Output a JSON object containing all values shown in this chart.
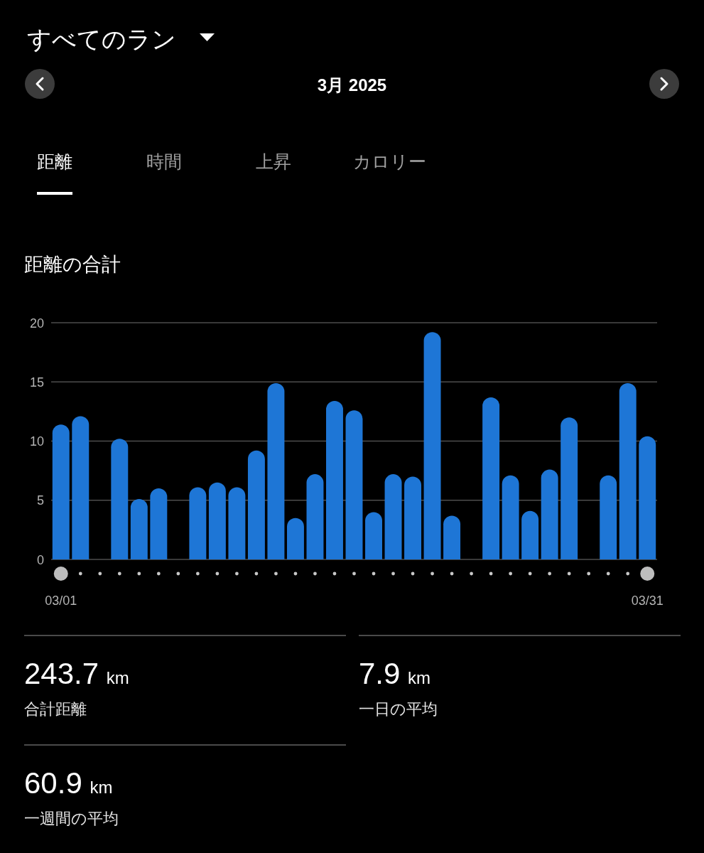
{
  "chart_data": [
    {
      "type": "other",
      "title": "すべてのラン",
      "subtitle": "3月 2025",
      "annotations": [
        "距離",
        "時間",
        "上昇",
        "カロリー"
      ]
    },
    {
      "type": "bar",
      "title": "距離の合計",
      "categories": [
        "03/01",
        null,
        null,
        null,
        null,
        null,
        null,
        null,
        null,
        null,
        null,
        null,
        null,
        null,
        null,
        null,
        null,
        null,
        null,
        null,
        null,
        null,
        null,
        null,
        null,
        null,
        null,
        null,
        null,
        null,
        "03/31"
      ],
      "values": [
        11.4,
        12.1,
        null,
        10.2,
        5.1,
        6.0,
        null,
        6.1,
        6.5,
        6.1,
        9.2,
        14.9,
        3.5,
        7.2,
        13.4,
        12.6,
        4.0,
        7.2,
        7.0,
        19.2,
        3.7,
        null,
        13.7,
        7.1,
        4.1,
        7.6,
        12.0,
        null,
        7.1,
        14.9,
        10.4
      ],
      "color": "#1e76d6",
      "ylim": [
        0,
        20
      ],
      "yticks": [
        0,
        5,
        10,
        15,
        20
      ],
      "grid": "y"
    },
    {
      "type": "other",
      "annotations": [
        "243.7 km",
        "合計距離",
        "7.9 km",
        "一日の平均",
        "60.9 km",
        "一週間の平均"
      ]
    }
  ]
}
